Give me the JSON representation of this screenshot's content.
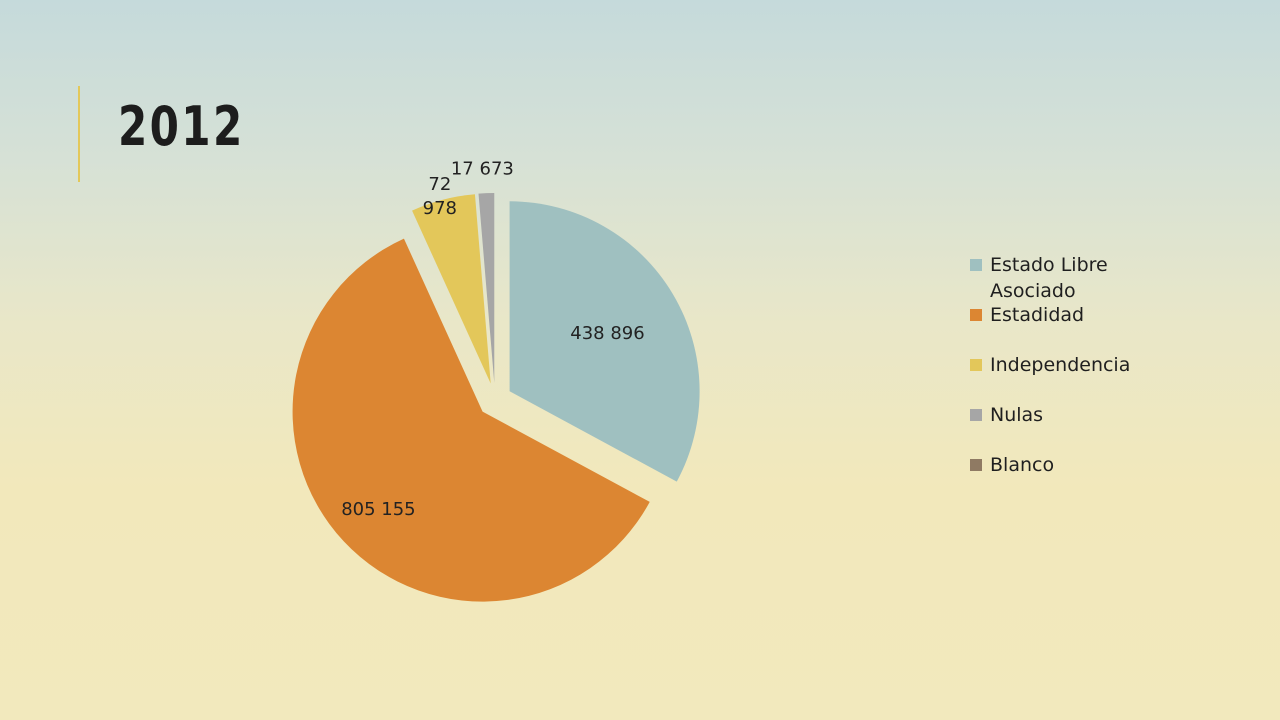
{
  "title": "2012",
  "chart_data": {
    "type": "pie",
    "categories": [
      "Estado Libre Asociado",
      "Estadidad",
      "Independencia",
      "Nulas",
      "Blanco"
    ],
    "values": [
      438896,
      805155,
      72978,
      17673,
      null
    ],
    "data_labels": [
      "438 896",
      "805 155",
      "72 978",
      "17 673",
      ""
    ],
    "colors": [
      "#9fc0c0",
      "#dc8632",
      "#e3c75a",
      "#a6a6a6",
      "#8f7a63"
    ],
    "legend_position": "right",
    "exploded": true
  }
}
